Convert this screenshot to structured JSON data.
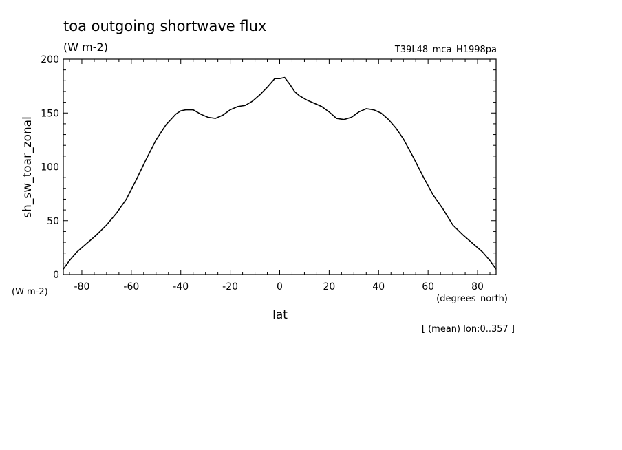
{
  "chart_data": {
    "type": "line",
    "title": "toa outgoing shortwave flux",
    "units": "(W m-2)",
    "run_label": "T39L48_mca_H1998pa",
    "ylabel": "sh_sw_toar_zonal",
    "y_units": "(W m-2)",
    "xlabel": "lat",
    "x_units": "(degrees_north)",
    "footnote": "[ (mean) lon:0..357 ]",
    "xlim": [
      -87.5,
      87.5
    ],
    "ylim": [
      0,
      200
    ],
    "x_ticks": [
      -80,
      -60,
      -40,
      -20,
      0,
      20,
      40,
      60,
      80
    ],
    "x_tick_labels": [
      "-80",
      "-60",
      "-40",
      "-20",
      "0",
      "20",
      "40",
      "60",
      "80"
    ],
    "y_ticks": [
      0,
      50,
      100,
      150,
      200
    ],
    "y_tick_labels": [
      "0",
      "50",
      "100",
      "150",
      "200"
    ],
    "grid": false,
    "line_color": "#000000",
    "series": [
      {
        "x": [
          -87.5,
          -85,
          -82,
          -78,
          -74,
          -70,
          -66,
          -62,
          -58,
          -54,
          -50,
          -46,
          -42,
          -40,
          -38,
          -35,
          -32,
          -29,
          -26,
          -23,
          -20,
          -17,
          -14,
          -11,
          -8,
          -5,
          -2,
          0,
          2,
          4,
          6,
          8,
          11,
          14,
          17,
          20,
          23,
          26,
          29,
          32,
          35,
          38,
          41,
          44,
          47,
          50,
          54,
          58,
          62,
          66,
          70,
          74,
          78,
          82,
          85,
          87.5
        ],
        "values": [
          5,
          13,
          21,
          29,
          37,
          46,
          57,
          70,
          88,
          107,
          125,
          139,
          149,
          152,
          153,
          153,
          149,
          146,
          145,
          148,
          153,
          156,
          157,
          161,
          167,
          174,
          182,
          182,
          183,
          177,
          170,
          166,
          162,
          159,
          156,
          151,
          145,
          144,
          146,
          151,
          154,
          153,
          150,
          144,
          136,
          126,
          109,
          91,
          74,
          61,
          46,
          37,
          29,
          21,
          13,
          5
        ]
      }
    ]
  }
}
